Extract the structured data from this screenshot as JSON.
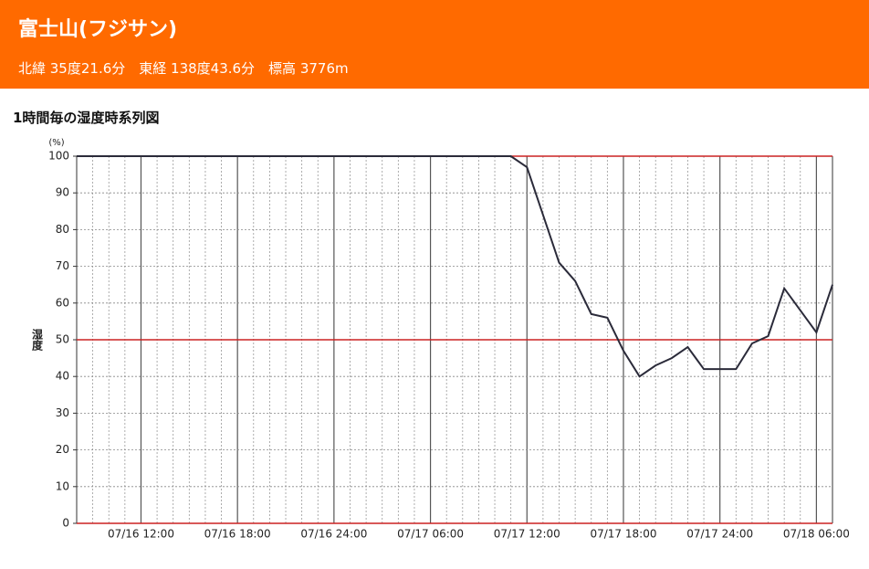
{
  "header": {
    "title": "富士山(フジサン)",
    "subtitle": "北緯 35度21.6分　東経 138度43.6分　標高 3776m"
  },
  "chart_data": {
    "type": "line",
    "title": "1時間毎の湿度時系列図",
    "y_label": "湿度",
    "y_unit": "(%)",
    "categories": [
      null,
      null,
      null,
      null,
      "07/16 12:00",
      null,
      null,
      null,
      null,
      null,
      "07/16 18:00",
      null,
      null,
      null,
      null,
      null,
      "07/16 24:00",
      null,
      null,
      null,
      null,
      null,
      "07/17 06:00",
      null,
      null,
      null,
      null,
      null,
      "07/17 12:00",
      null,
      null,
      null,
      null,
      null,
      "07/17 18:00",
      null,
      null,
      null,
      null,
      null,
      "07/17 24:00",
      null,
      null,
      null,
      null,
      null,
      "07/18 06:00",
      null
    ],
    "series": [
      {
        "name": "湿度",
        "color": "#2b2b3a",
        "values": [
          100,
          100,
          100,
          100,
          100,
          100,
          100,
          100,
          100,
          100,
          100,
          100,
          100,
          100,
          100,
          100,
          100,
          100,
          100,
          100,
          100,
          100,
          100,
          100,
          100,
          100,
          100,
          100,
          97,
          84,
          71,
          66,
          57,
          56,
          47,
          40,
          43,
          45,
          48,
          42,
          42,
          42,
          49,
          51,
          64,
          58,
          52,
          65
        ]
      }
    ],
    "ylim": [
      0,
      100
    ],
    "yticks": [
      0,
      10,
      20,
      30,
      40,
      50,
      60,
      70,
      80,
      90,
      100
    ],
    "grid": true,
    "reference_lines": {
      "values": [
        0,
        50,
        100
      ],
      "color": "#cc2222"
    }
  }
}
